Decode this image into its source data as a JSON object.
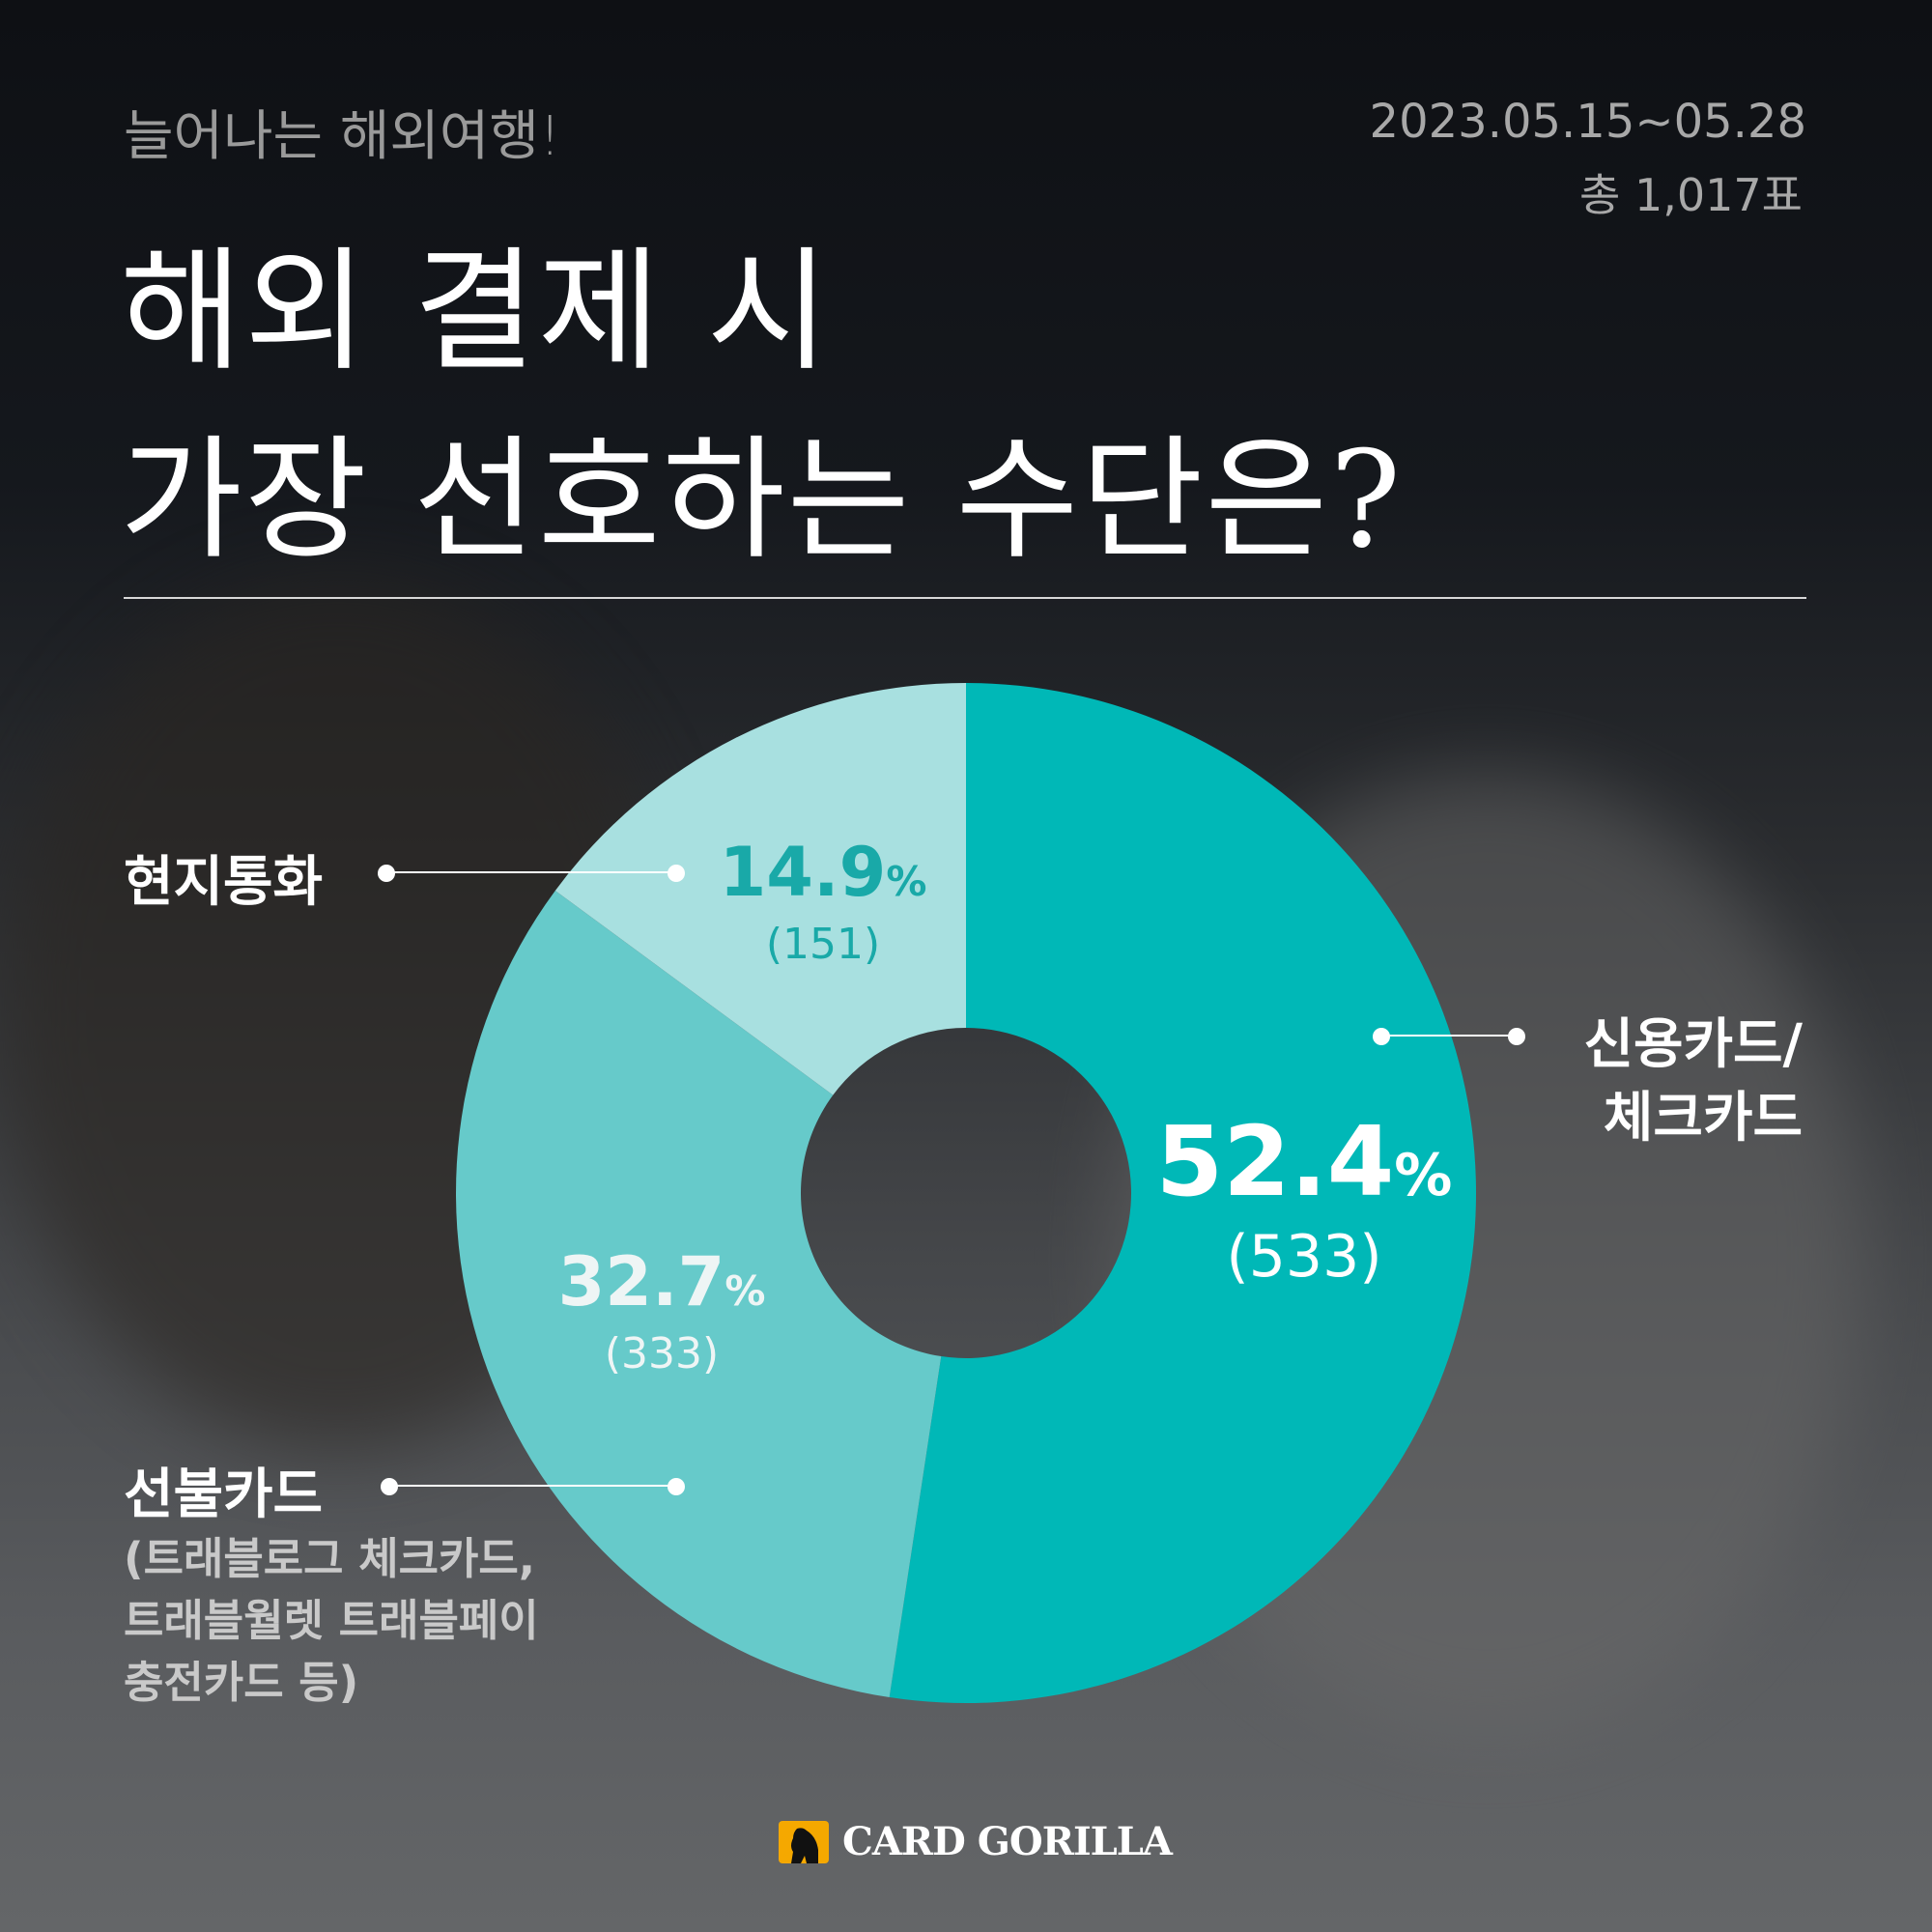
{
  "header": {
    "kicker": "늘어나는 해외여행!",
    "date_range": "2023.05.15~05.28",
    "total_votes": "총 1,017표",
    "title_line1": "해외 결제 시",
    "title_line2": "가장 선호하는 수단은?"
  },
  "chart_data": {
    "type": "pie",
    "donut": true,
    "start": "top",
    "direction": "clockwise",
    "slices": [
      {
        "label": "신용카드/ 체크카드",
        "percent": 52.4,
        "count": 533,
        "color": "#00B8B7"
      },
      {
        "label": "선불카드",
        "percent": 32.7,
        "count": 333,
        "color": "#66CACA"
      },
      {
        "label": "현지통화",
        "percent": 14.9,
        "count": 151,
        "color": "#A8E0E0"
      }
    ]
  },
  "labels": {
    "credit_line1": "신용카드/",
    "credit_line2": "체크카드",
    "credit_pct": "52.4",
    "credit_count": "(533)",
    "prepaid": "선불카드",
    "prepaid_note1": "(트래블로그 체크카드,",
    "prepaid_note2": "트래블월렛 트래블페이",
    "prepaid_note3": "충전카드 등)",
    "prepaid_pct": "32.7",
    "prepaid_count": "(333)",
    "local": "현지통화",
    "local_pct": "14.9",
    "local_count": "(151)",
    "percent_sign": "%"
  },
  "colors": {
    "local_pct_text": "#19A9A8",
    "logo": "#F5A800"
  },
  "footer": {
    "logo_text": "CARD GORILLA",
    "logo_icon": "gorilla-icon"
  }
}
